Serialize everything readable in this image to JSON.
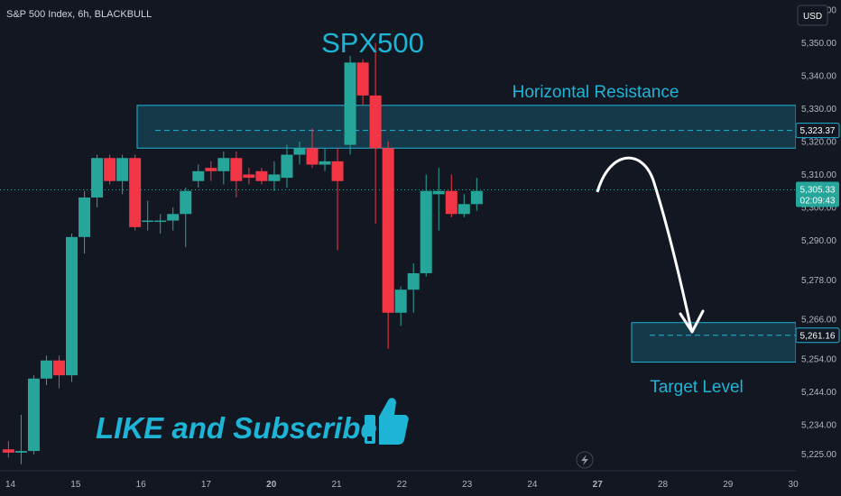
{
  "chart_data": {
    "type": "candlestick",
    "symbol_title": "S&P 500 Index, 6h, BLACKBULL",
    "title": "SPX500",
    "currency": "USD",
    "colors": {
      "up": "#26a69a",
      "down": "#f23645",
      "accent": "#1eb4d6",
      "background": "#131722"
    },
    "y_axis": {
      "range": [
        5220,
        5363
      ],
      "ticks": [
        5225,
        5234,
        5244,
        5254,
        5266,
        5278,
        5290,
        5300,
        5310,
        5320,
        5330,
        5340,
        5350,
        5360
      ],
      "tick_labels": [
        "5,225.00",
        "5,234.00",
        "5,244.00",
        "5,254.00",
        "5,266.00",
        "5,278.00",
        "5,290.00",
        "5,300.00",
        "5,310.00",
        "5,320.00",
        "5,330.00",
        "5,340.00",
        "5,350.00",
        "5,360.00"
      ]
    },
    "x_axis": {
      "range": [
        0,
        61
      ],
      "ticks": [
        0.8,
        5.8,
        10.8,
        15.8,
        20.8,
        25.8,
        30.8,
        35.8,
        40.8,
        45.8,
        50.8,
        55.8,
        60.8
      ],
      "tick_labels": [
        "14",
        "15",
        "16",
        "17",
        "20",
        "21",
        "22",
        "23",
        "24",
        "27",
        "28",
        "29",
        "30"
      ]
    },
    "candles": [
      [
        5226.5,
        5229,
        5224,
        5225.5
      ],
      [
        5225.5,
        5237,
        5222,
        5226
      ],
      [
        5226,
        5249,
        5225,
        5248
      ],
      [
        5248,
        5255,
        5246,
        5253.5
      ],
      [
        5253.5,
        5255,
        5245,
        5249
      ],
      [
        5249,
        5292,
        5247,
        5291
      ],
      [
        5291,
        5305,
        5286,
        5303
      ],
      [
        5303,
        5316,
        5300,
        5315
      ],
      [
        5315,
        5316,
        5307,
        5308
      ],
      [
        5308,
        5316,
        5304,
        5315
      ],
      [
        5315,
        5316,
        5293,
        5294
      ],
      [
        5296,
        5302,
        5293,
        5296
      ],
      [
        5296,
        5298,
        5292,
        5296
      ],
      [
        5296,
        5300,
        5293,
        5298
      ],
      [
        5298,
        5306,
        5288,
        5305
      ],
      [
        5308,
        5313,
        5306,
        5311
      ],
      [
        5312,
        5314,
        5308,
        5311
      ],
      [
        5311,
        5317,
        5307,
        5315
      ],
      [
        5315,
        5317,
        5303,
        5308
      ],
      [
        5310,
        5312,
        5307,
        5309
      ],
      [
        5311,
        5312,
        5307,
        5308
      ],
      [
        5308,
        5314,
        5305,
        5310
      ],
      [
        5309,
        5319,
        5306,
        5316
      ],
      [
        5316,
        5320,
        5313,
        5318
      ],
      [
        5318,
        5324,
        5312,
        5313
      ],
      [
        5313,
        5318,
        5311,
        5314
      ],
      [
        5314,
        5318,
        5287,
        5308
      ],
      [
        5319,
        5346,
        5316,
        5344
      ],
      [
        5344,
        5345,
        5331,
        5334
      ],
      [
        5334,
        5350,
        5295,
        5318
      ],
      [
        5318,
        5320,
        5257,
        5268
      ],
      [
        5268,
        5276,
        5264,
        5275
      ],
      [
        5275,
        5283,
        5268,
        5280
      ],
      [
        5280,
        5310,
        5279,
        5305
      ],
      [
        5304,
        5312,
        5293,
        5305
      ],
      [
        5305,
        5310,
        5297,
        5298
      ],
      [
        5298,
        5304,
        5297,
        5301
      ],
      [
        5301,
        5309,
        5299,
        5305
      ]
    ],
    "zones": [
      {
        "label": "Horizontal Resistance",
        "from": 5318,
        "to": 5331,
        "level": 5323.37,
        "level_label": "5,323.37"
      },
      {
        "label": "Target Level",
        "from": 5253,
        "to": 5265,
        "level": 5261.16,
        "level_label": "5,261.16"
      }
    ],
    "current_price": {
      "value": 5305.33,
      "label": "5,305.33",
      "countdown": "02:09:43"
    }
  },
  "annotations": {
    "resistance_label": "Horizontal Resistance",
    "target_label": "Target Level",
    "promo_text": "LIKE and Subscribe",
    "thumbs_icon": "thumbs-up-icon",
    "arrow_icon": "curved-arrow-down"
  }
}
